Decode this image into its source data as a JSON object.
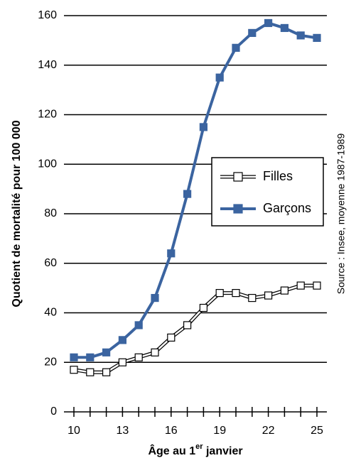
{
  "chart_data": {
    "type": "line",
    "y_label": "Quotient de mortalité pour 100 000",
    "x_label": [
      "Âge au 1",
      "er",
      " janvier"
    ],
    "source": "Source : Insee, moyenne 1987-1989",
    "x": [
      10,
      11,
      12,
      13,
      14,
      15,
      16,
      17,
      18,
      19,
      20,
      21,
      22,
      23,
      24,
      25
    ],
    "series": [
      {
        "name": "Filles",
        "color": "#ffffff",
        "values": [
          17,
          16,
          16,
          20,
          22,
          24,
          30,
          35,
          42,
          48,
          48,
          46,
          47,
          49,
          51,
          51
        ]
      },
      {
        "name": "Garçons",
        "color": "#3b64a0",
        "values": [
          22,
          22,
          24,
          29,
          35,
          46,
          64,
          88,
          115,
          135,
          147,
          153,
          157,
          155,
          152,
          151
        ]
      }
    ],
    "xlim": [
      10,
      25
    ],
    "xticks": [
      10,
      13,
      16,
      19,
      22,
      25
    ],
    "xminorticks": [
      10,
      11,
      12,
      13,
      14,
      15,
      16,
      17,
      18,
      19,
      20,
      21,
      22,
      23,
      24,
      25
    ],
    "ylim": [
      0,
      160
    ],
    "yticks": [
      0,
      20,
      40,
      60,
      80,
      100,
      120,
      140,
      160
    ],
    "grid": true,
    "legend": "center right"
  }
}
